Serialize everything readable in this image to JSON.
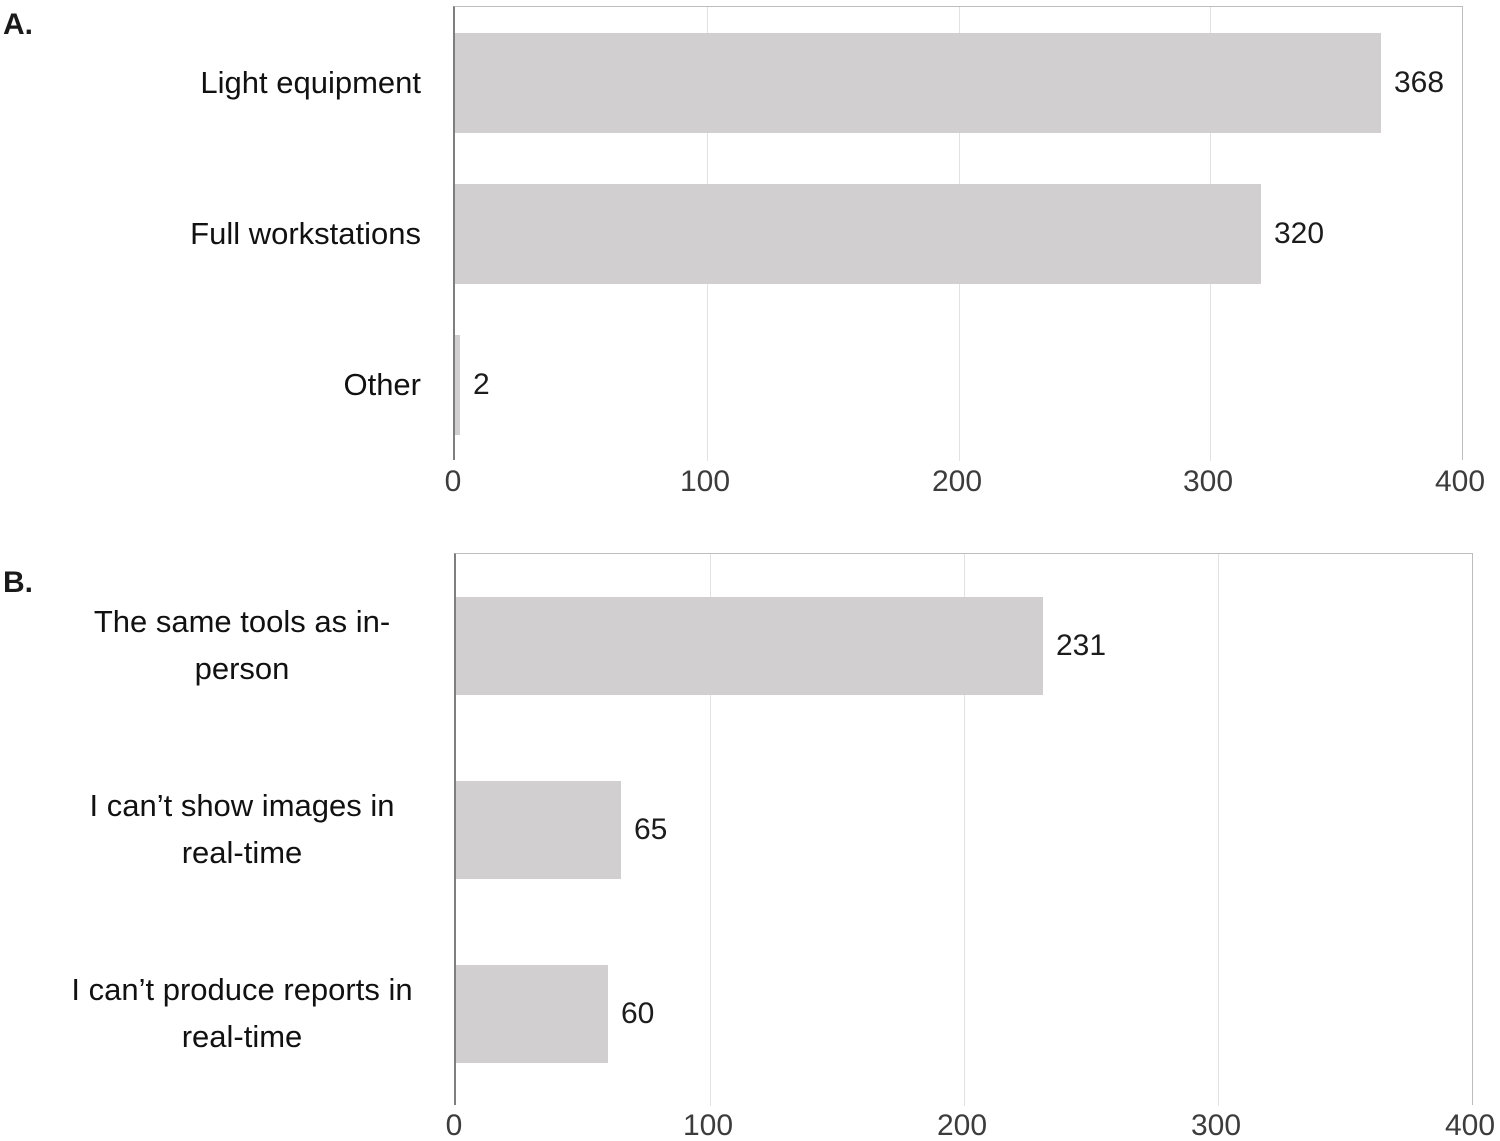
{
  "figure": {
    "background": "#ffffff",
    "panel_a_label": "A.",
    "panel_b_label": "B."
  },
  "chart_data": [
    {
      "type": "bar",
      "orientation": "horizontal",
      "panel_label": "A.",
      "title": "",
      "xlabel": "",
      "ylabel": "",
      "categories": [
        "Light equipment",
        "Full workstations",
        "Other"
      ],
      "values": [
        368,
        320,
        2
      ],
      "data_labels": [
        "368",
        "320",
        "2"
      ],
      "xlim": [
        0,
        400
      ],
      "xticks": [
        0,
        100,
        200,
        300,
        400
      ],
      "xtick_labels": [
        "0",
        "100",
        "200",
        "300",
        "400"
      ],
      "grid": "vertical",
      "legend": "none",
      "bar_color": "#d1cfcf"
    },
    {
      "type": "bar",
      "orientation": "horizontal",
      "panel_label": "B.",
      "title": "",
      "xlabel": "",
      "ylabel": "",
      "categories": [
        "The same tools as in-person",
        "I can’t show images in real-time",
        "I can’t produce reports in real-time"
      ],
      "values": [
        231,
        65,
        60
      ],
      "data_labels": [
        "231",
        "65",
        "60"
      ],
      "xlim": [
        0,
        400
      ],
      "xticks": [
        0,
        100,
        200,
        300,
        400
      ],
      "xtick_labels": [
        "0",
        "100",
        "200",
        "300",
        "400"
      ],
      "grid": "vertical",
      "legend": "none",
      "bar_color": "#d1cfcf"
    }
  ]
}
